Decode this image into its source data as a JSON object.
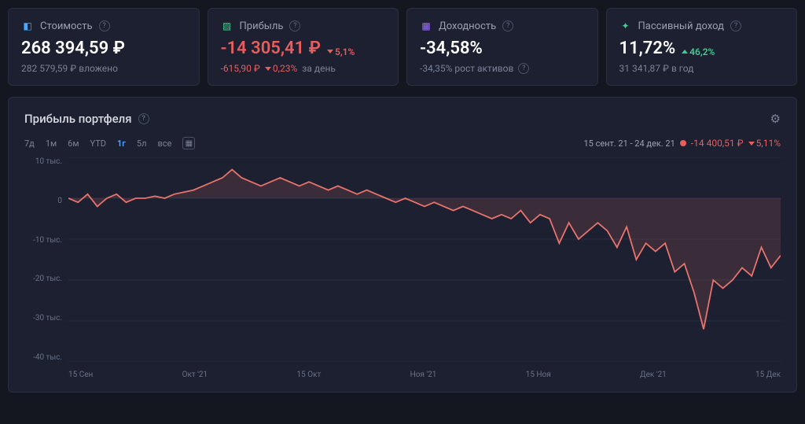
{
  "cards": {
    "value": {
      "label": "Стоимость",
      "amount": "268 394,59 ₽",
      "sub": "282 579,59 ₽ вложено"
    },
    "profit": {
      "label": "Прибыль",
      "amount": "-14 305,41 ₽",
      "pct": "5,1%",
      "sub_amount": "-615,90 ₽",
      "sub_pct": "0,23%",
      "sub_text": "за день"
    },
    "yield": {
      "label": "Доходность",
      "amount": "-34,58%",
      "sub": "-34,35% рост активов"
    },
    "passive": {
      "label": "Пассивный доход",
      "amount": "11,72%",
      "pct": "46,2%",
      "sub": "31 341,87 ₽ в год"
    }
  },
  "chart": {
    "title": "Прибыль портфеля",
    "ranges": {
      "d7": "7д",
      "m1": "1м",
      "m6": "6м",
      "ytd": "YTD",
      "y1": "1г",
      "y5": "5л",
      "all": "все"
    },
    "active_range": "y1",
    "legend_date": "15 сент. 21 - 24 дек. 21",
    "legend_value": "-14 400,51 ₽",
    "legend_pct": "5,11%",
    "y_ticks": [
      "10 тыс.",
      "0",
      "-10 тыс.",
      "-20 тыс.",
      "-30 тыс.",
      "-40 тыс."
    ],
    "x_ticks": [
      "15 Сен",
      "Окт '21",
      "15 Окт",
      "Ноя '21",
      "15 Ноя",
      "Дек '21",
      "15 Дек"
    ],
    "ylim": [
      -40,
      10
    ],
    "line_color": "#e8736c",
    "fill_color": "rgba(232,115,108,0.15)",
    "grid_color": "#2a2f42",
    "series": [
      0,
      -1,
      1,
      -2,
      0,
      1,
      -1,
      0,
      0,
      0.5,
      0,
      1,
      1.5,
      2,
      3,
      4,
      5,
      7,
      5,
      4,
      3,
      4,
      5,
      4,
      3,
      4,
      3,
      2,
      3,
      2,
      1,
      2,
      1,
      0,
      -1,
      0,
      -1,
      -2,
      -1,
      -2,
      -3,
      -2,
      -3,
      -4,
      -5,
      -4,
      -5,
      -3,
      -6,
      -4,
      -5,
      -11,
      -6,
      -10,
      -8,
      -6,
      -8,
      -12,
      -7,
      -15,
      -11,
      -13,
      -11,
      -18,
      -16,
      -23,
      -32,
      -20,
      -22,
      -20,
      -17,
      -19,
      -12,
      -17,
      -14
    ]
  }
}
